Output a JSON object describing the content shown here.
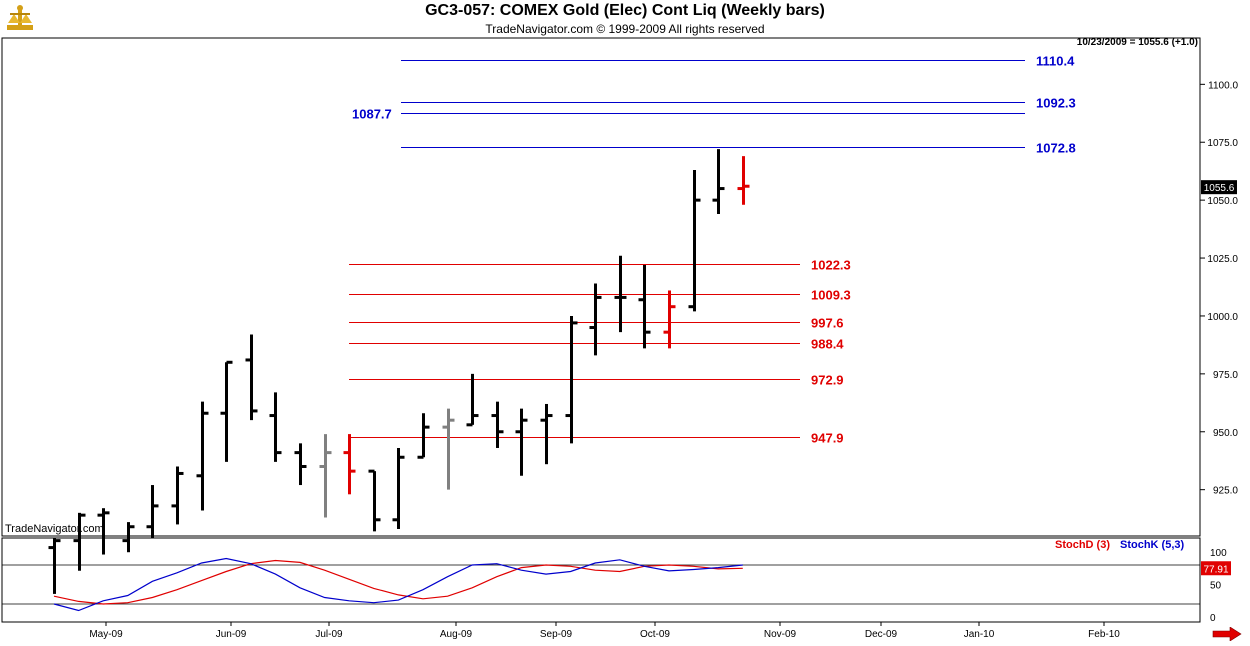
{
  "header": {
    "title": "GC3-057:  COMEX Gold (Elec) Cont Liq  (Weekly bars)",
    "subtitle": "TradeNavigator.com © 1999-2009 All rights reserved",
    "quote": "10/23/2009 = 1055.6 (+1.0)",
    "watermark": "TradeNavigator.com"
  },
  "chart_data": [
    {
      "type": "ohlc",
      "ylim": [
        905,
        1120
      ],
      "y_ticks": [
        "925.0",
        "950.0",
        "975.0",
        "1000.0",
        "1025.0",
        "1050.0",
        "1075.0",
        "1100.0"
      ],
      "x_labels": [
        "May-09",
        "Jun-09",
        "Jul-09",
        "Aug-09",
        "Sep-09",
        "Oct-09",
        "Nov-09",
        "Dec-09",
        "Jan-10",
        "Feb-10"
      ],
      "last_price_label": "1055.6",
      "last_price": 1055.6,
      "bars": [
        {
          "h": 904,
          "l": 880,
          "o": 900,
          "c": 903,
          "color": "#000000"
        },
        {
          "h": 915,
          "l": 890,
          "o": 903,
          "c": 914,
          "color": "#000000"
        },
        {
          "h": 917,
          "l": 897,
          "o": 914,
          "c": 915,
          "color": "#000000"
        },
        {
          "h": 911,
          "l": 898,
          "o": 903,
          "c": 909,
          "color": "#000000"
        },
        {
          "h": 927,
          "l": 904,
          "o": 909,
          "c": 918,
          "color": "#000000"
        },
        {
          "h": 935,
          "l": 910,
          "o": 918,
          "c": 932,
          "color": "#000000"
        },
        {
          "h": 963,
          "l": 916,
          "o": 931,
          "c": 958,
          "color": "#000000"
        },
        {
          "h": 980,
          "l": 937,
          "o": 958,
          "c": 980,
          "color": "#000000"
        },
        {
          "h": 992,
          "l": 955,
          "o": 981,
          "c": 959,
          "color": "#000000"
        },
        {
          "h": 967,
          "l": 937,
          "o": 957,
          "c": 941,
          "color": "#000000"
        },
        {
          "h": 945,
          "l": 927,
          "o": 941,
          "c": 935,
          "color": "#000000"
        },
        {
          "h": 949,
          "l": 913,
          "o": 935,
          "c": 941,
          "color": "#808080"
        },
        {
          "h": 949,
          "l": 923,
          "o": 941,
          "c": 933,
          "color": "#e00000"
        },
        {
          "h": 933,
          "l": 907,
          "o": 933,
          "c": 912,
          "color": "#000000"
        },
        {
          "h": 943,
          "l": 908,
          "o": 912,
          "c": 939,
          "color": "#000000"
        },
        {
          "h": 958,
          "l": 939,
          "o": 939,
          "c": 952,
          "color": "#000000"
        },
        {
          "h": 960,
          "l": 925,
          "o": 952,
          "c": 955,
          "color": "#808080"
        },
        {
          "h": 975,
          "l": 953,
          "o": 953,
          "c": 957,
          "color": "#000000"
        },
        {
          "h": 963,
          "l": 943,
          "o": 957,
          "c": 950,
          "color": "#000000"
        },
        {
          "h": 960,
          "l": 931,
          "o": 950,
          "c": 955,
          "color": "#000000"
        },
        {
          "h": 962,
          "l": 936,
          "o": 955,
          "c": 957,
          "color": "#000000"
        },
        {
          "h": 1000,
          "l": 945,
          "o": 957,
          "c": 997,
          "color": "#000000"
        },
        {
          "h": 1014,
          "l": 983,
          "o": 995,
          "c": 1008,
          "color": "#000000"
        },
        {
          "h": 1026,
          "l": 993,
          "o": 1008,
          "c": 1008,
          "color": "#000000"
        },
        {
          "h": 1022,
          "l": 986,
          "o": 1007,
          "c": 993,
          "color": "#000000"
        },
        {
          "h": 1011,
          "l": 986,
          "o": 993,
          "c": 1004,
          "color": "#e00000"
        },
        {
          "h": 1063,
          "l": 1002,
          "o": 1004,
          "c": 1050,
          "color": "#000000"
        },
        {
          "h": 1072,
          "l": 1044,
          "o": 1050,
          "c": 1055,
          "color": "#000000"
        },
        {
          "h": 1069,
          "l": 1048,
          "o": 1055,
          "c": 1056,
          "color": "#e00000"
        }
      ],
      "levels": [
        {
          "value": 1110.4,
          "label": "1110.4",
          "color": "#0000cc",
          "label_side": "right"
        },
        {
          "value": 1092.3,
          "label": "1092.3",
          "color": "#0000cc",
          "label_side": "right"
        },
        {
          "value": 1087.7,
          "label": "1087.7",
          "color": "#0000cc",
          "label_side": "left"
        },
        {
          "value": 1072.8,
          "label": "1072.8",
          "color": "#0000cc",
          "label_side": "right"
        },
        {
          "value": 1022.3,
          "label": "1022.3",
          "color": "#e00000",
          "label_side": "right"
        },
        {
          "value": 1009.3,
          "label": "1009.3",
          "color": "#e00000",
          "label_side": "right"
        },
        {
          "value": 997.6,
          "label": "997.6",
          "color": "#e00000",
          "label_side": "right"
        },
        {
          "value": 988.4,
          "label": "988.4",
          "color": "#e00000",
          "label_side": "right"
        },
        {
          "value": 972.9,
          "label": "972.9",
          "color": "#e00000",
          "label_side": "right"
        },
        {
          "value": 947.9,
          "label": "947.9",
          "color": "#e00000",
          "label_side": "right"
        }
      ]
    },
    {
      "type": "line",
      "ylim": [
        0,
        100
      ],
      "y_ticks": [
        "100",
        "50",
        "0"
      ],
      "reference_lines": [
        80,
        20
      ],
      "last_value_label": "77.91",
      "series": [
        {
          "name": "StochD (3)",
          "color": "#e00000",
          "values": [
            32,
            24,
            20,
            22,
            30,
            42,
            56,
            70,
            82,
            87,
            84,
            72,
            58,
            44,
            34,
            28,
            32,
            45,
            62,
            76,
            80,
            78,
            72,
            70,
            78,
            80,
            78,
            74,
            75
          ]
        },
        {
          "name": "StochK (5,3)",
          "color": "#0000cc",
          "values": [
            20,
            10,
            25,
            33,
            55,
            68,
            83,
            90,
            82,
            66,
            45,
            30,
            25,
            22,
            26,
            42,
            62,
            80,
            82,
            72,
            66,
            70,
            83,
            88,
            78,
            71,
            73,
            76,
            80
          ]
        }
      ]
    }
  ]
}
